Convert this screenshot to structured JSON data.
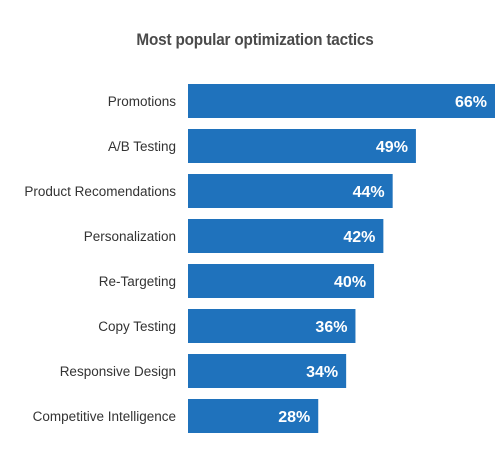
{
  "chart_data": {
    "type": "bar",
    "orientation": "horizontal",
    "title": "Most popular optimization tactics",
    "categories": [
      "Promotions",
      "A/B Testing",
      "Product Recomendations",
      "Personalization",
      "Re-Targeting",
      "Copy Testing",
      "Responsive Design",
      "Competitive Intelligence"
    ],
    "values": [
      66,
      49,
      44,
      42,
      40,
      36,
      34,
      28
    ],
    "value_labels": [
      "66%",
      "49%",
      "44%",
      "42%",
      "40%",
      "36%",
      "34%",
      "28%"
    ],
    "unit": "%",
    "bar_color": "#1f72bc",
    "grid": false,
    "legend": "none"
  }
}
